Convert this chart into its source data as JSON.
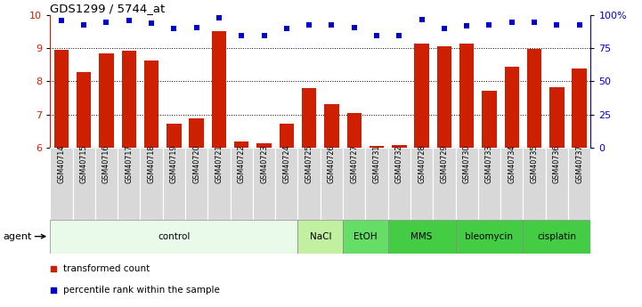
{
  "title": "GDS1299 / 5744_at",
  "samples": [
    "GSM40714",
    "GSM40715",
    "GSM40716",
    "GSM40717",
    "GSM40718",
    "GSM40719",
    "GSM40720",
    "GSM40721",
    "GSM40722",
    "GSM40723",
    "GSM40724",
    "GSM40725",
    "GSM40726",
    "GSM40727",
    "GSM40731",
    "GSM40732",
    "GSM40728",
    "GSM40729",
    "GSM40730",
    "GSM40733",
    "GSM40734",
    "GSM40735",
    "GSM40736",
    "GSM40737"
  ],
  "bar_values": [
    8.95,
    8.28,
    8.85,
    8.92,
    8.62,
    6.72,
    6.88,
    9.52,
    6.18,
    6.12,
    6.72,
    7.8,
    7.32,
    7.05,
    6.05,
    6.08,
    9.15,
    9.05,
    9.15,
    7.72,
    8.45,
    8.98,
    7.82,
    8.4
  ],
  "percentile_values": [
    96,
    93,
    95,
    96,
    94,
    90,
    91,
    98,
    85,
    85,
    90,
    93,
    93,
    91,
    85,
    85,
    97,
    90,
    92,
    93,
    95,
    95,
    93,
    93
  ],
  "ylim_left": [
    6,
    10
  ],
  "ylim_right": [
    0,
    100
  ],
  "yticks_left": [
    6,
    7,
    8,
    9,
    10
  ],
  "yticks_right": [
    0,
    25,
    50,
    75,
    100
  ],
  "ytick_right_labels": [
    "0",
    "25",
    "50",
    "75",
    "100%"
  ],
  "bar_color": "#cc2000",
  "dot_color": "#0000cc",
  "grid_color": "#000000",
  "agents": [
    {
      "label": "control",
      "start": 0,
      "end": 11,
      "color": "#eafaea"
    },
    {
      "label": "NaCl",
      "start": 11,
      "end": 13,
      "color": "#c0f0a0"
    },
    {
      "label": "EtOH",
      "start": 13,
      "end": 15,
      "color": "#66dd66"
    },
    {
      "label": "MMS",
      "start": 15,
      "end": 18,
      "color": "#44cc44"
    },
    {
      "label": "bleomycin",
      "start": 18,
      "end": 21,
      "color": "#44cc44"
    },
    {
      "label": "cisplatin",
      "start": 21,
      "end": 24,
      "color": "#44cc44"
    }
  ],
  "legend_bar_label": "transformed count",
  "legend_dot_label": "percentile rank within the sample",
  "agent_label": "agent"
}
